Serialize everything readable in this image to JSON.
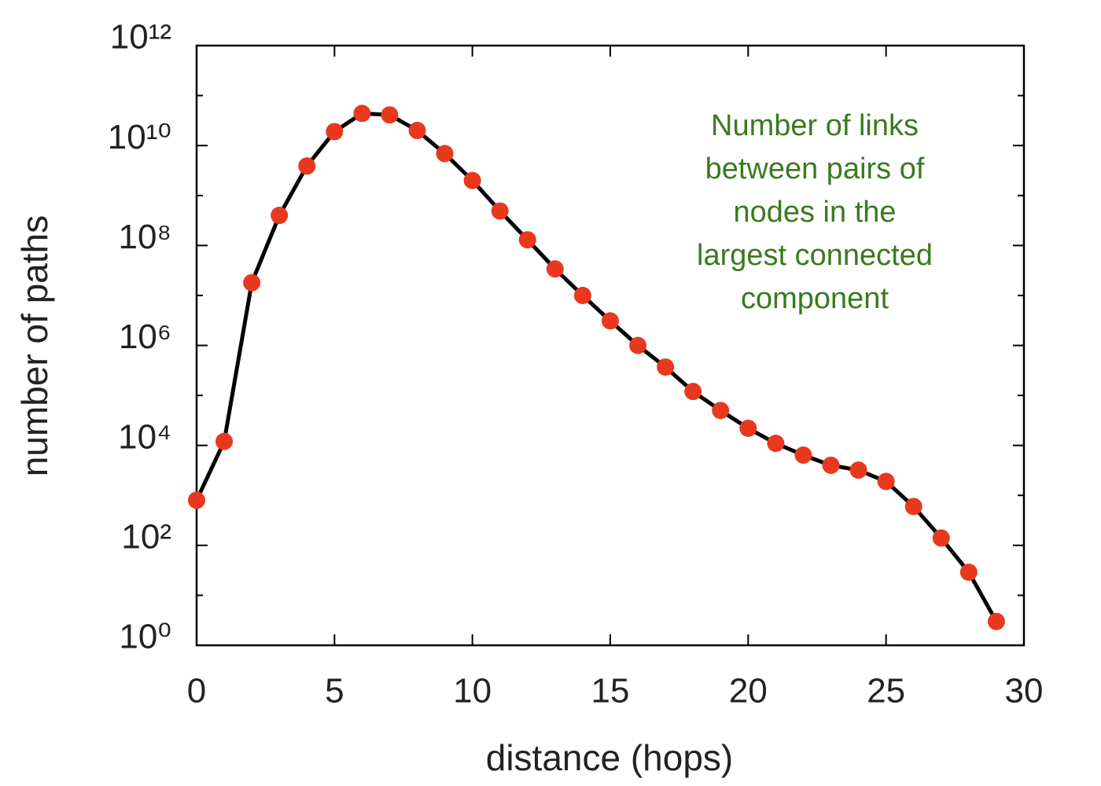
{
  "chart_data": {
    "type": "line",
    "xlabel": "distance (hops)",
    "ylabel": "number of paths",
    "annotation": [
      "Number of links",
      "between pairs of",
      "nodes in the",
      "largest connected",
      "component"
    ],
    "annotation_color": "#3a7a1e",
    "x": [
      0,
      1,
      2,
      3,
      4,
      5,
      6,
      7,
      8,
      9,
      10,
      11,
      12,
      13,
      14,
      15,
      16,
      17,
      18,
      19,
      20,
      21,
      22,
      23,
      24,
      25,
      26,
      27,
      28,
      29
    ],
    "series": [
      {
        "name": "number of paths",
        "color": "#000000",
        "marker_color": "#e8391f",
        "values": [
          800,
          12000,
          18000000,
          400000000,
          3900000000,
          19000000000,
          44000000000,
          41000000000,
          20000000000,
          6900000000,
          2000000000,
          490000000,
          130000000,
          34000000,
          10000000,
          3100000,
          1000000,
          370000,
          120000,
          50000,
          22000,
          11000,
          6400,
          4000,
          3200,
          1900,
          600,
          140,
          29,
          3
        ]
      }
    ],
    "xlim": [
      0,
      30
    ],
    "xticks": [
      0,
      5,
      10,
      15,
      20,
      25,
      30
    ],
    "ylim": [
      1,
      1000000000000
    ],
    "log_y": true,
    "yticks": [
      {
        "value": 1,
        "label": "10⁰"
      },
      {
        "value": 100,
        "label": "10²"
      },
      {
        "value": 10000,
        "label": "10⁴"
      },
      {
        "value": 1000000,
        "label": "10⁶"
      },
      {
        "value": 100000000,
        "label": "10⁸"
      },
      {
        "value": 10000000000,
        "label": "10¹⁰"
      },
      {
        "value": 1000000000000,
        "label": "10¹²"
      }
    ],
    "yticks_minor": [
      10,
      1000,
      100000,
      10000000,
      1000000000,
      100000000000
    ]
  }
}
